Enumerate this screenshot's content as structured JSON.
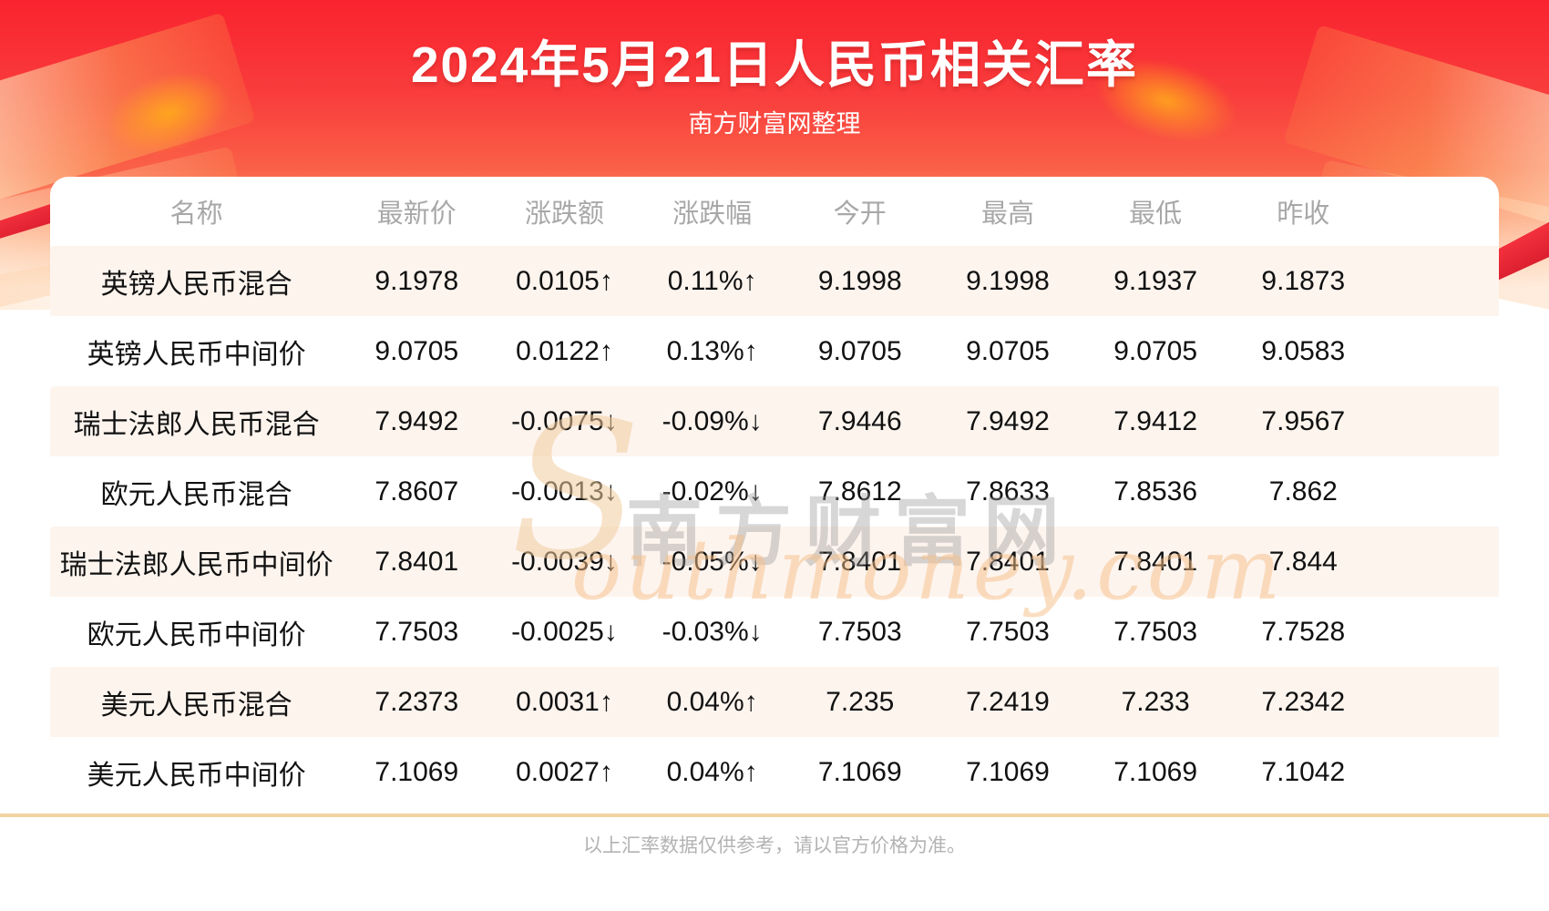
{
  "chart_data": {
    "type": "table",
    "title": "2024年5月21日人民币相关汇率",
    "subtitle": "南方财富网整理",
    "columns": [
      "名称",
      "最新价",
      "涨跌额",
      "涨跌幅",
      "今开",
      "最高",
      "最低",
      "昨收"
    ],
    "rows": [
      {
        "name": "英镑人民币混合",
        "latest": 9.1978,
        "change": 0.0105,
        "change_pct": "0.11%",
        "direction": "up",
        "open": 9.1998,
        "high": 9.1998,
        "low": 9.1937,
        "prev_close": 9.1873
      },
      {
        "name": "英镑人民币中间价",
        "latest": 9.0705,
        "change": 0.0122,
        "change_pct": "0.13%",
        "direction": "up",
        "open": 9.0705,
        "high": 9.0705,
        "low": 9.0705,
        "prev_close": 9.0583
      },
      {
        "name": "瑞士法郎人民币混合",
        "latest": 7.9492,
        "change": -0.0075,
        "change_pct": "-0.09%",
        "direction": "down",
        "open": 7.9446,
        "high": 7.9492,
        "low": 7.9412,
        "prev_close": 7.9567
      },
      {
        "name": "欧元人民币混合",
        "latest": 7.8607,
        "change": -0.0013,
        "change_pct": "-0.02%",
        "direction": "down",
        "open": 7.8612,
        "high": 7.8633,
        "low": 7.8536,
        "prev_close": 7.862
      },
      {
        "name": "瑞士法郎人民币中间价",
        "latest": 7.8401,
        "change": -0.0039,
        "change_pct": "-0.05%",
        "direction": "down",
        "open": 7.8401,
        "high": 7.8401,
        "low": 7.8401,
        "prev_close": 7.844
      },
      {
        "name": "欧元人民币中间价",
        "latest": 7.7503,
        "change": -0.0025,
        "change_pct": "-0.03%",
        "direction": "down",
        "open": 7.7503,
        "high": 7.7503,
        "low": 7.7503,
        "prev_close": 7.7528
      },
      {
        "name": "美元人民币混合",
        "latest": 7.2373,
        "change": 0.0031,
        "change_pct": "0.04%",
        "direction": "up",
        "open": 7.235,
        "high": 7.2419,
        "low": 7.233,
        "prev_close": 7.2342
      },
      {
        "name": "美元人民币中间价",
        "latest": 7.1069,
        "change": 0.0027,
        "change_pct": "0.04%",
        "direction": "up",
        "open": 7.1069,
        "high": 7.1069,
        "low": 7.1069,
        "prev_close": 7.1042
      }
    ],
    "legend_position": "none",
    "grid": false
  },
  "arrows": {
    "up": "↑",
    "down": "↓"
  },
  "watermark": {
    "initial": "S",
    "cn": "南方财富网",
    "en": "outhmoney.com"
  },
  "footer": {
    "note": "以上汇率数据仅供参考，请以官方价格为准。"
  },
  "colors": {
    "positive": "#fe1b1b",
    "negative": "#0f9b0f",
    "header_text": "#a8a8a8",
    "row_alt_bg": "#fdf4ee",
    "divider": "#f3d3a4",
    "banner_red_top": "#f9232f",
    "banner_orange": "#fa6148",
    "title_text": "#ffffff"
  }
}
